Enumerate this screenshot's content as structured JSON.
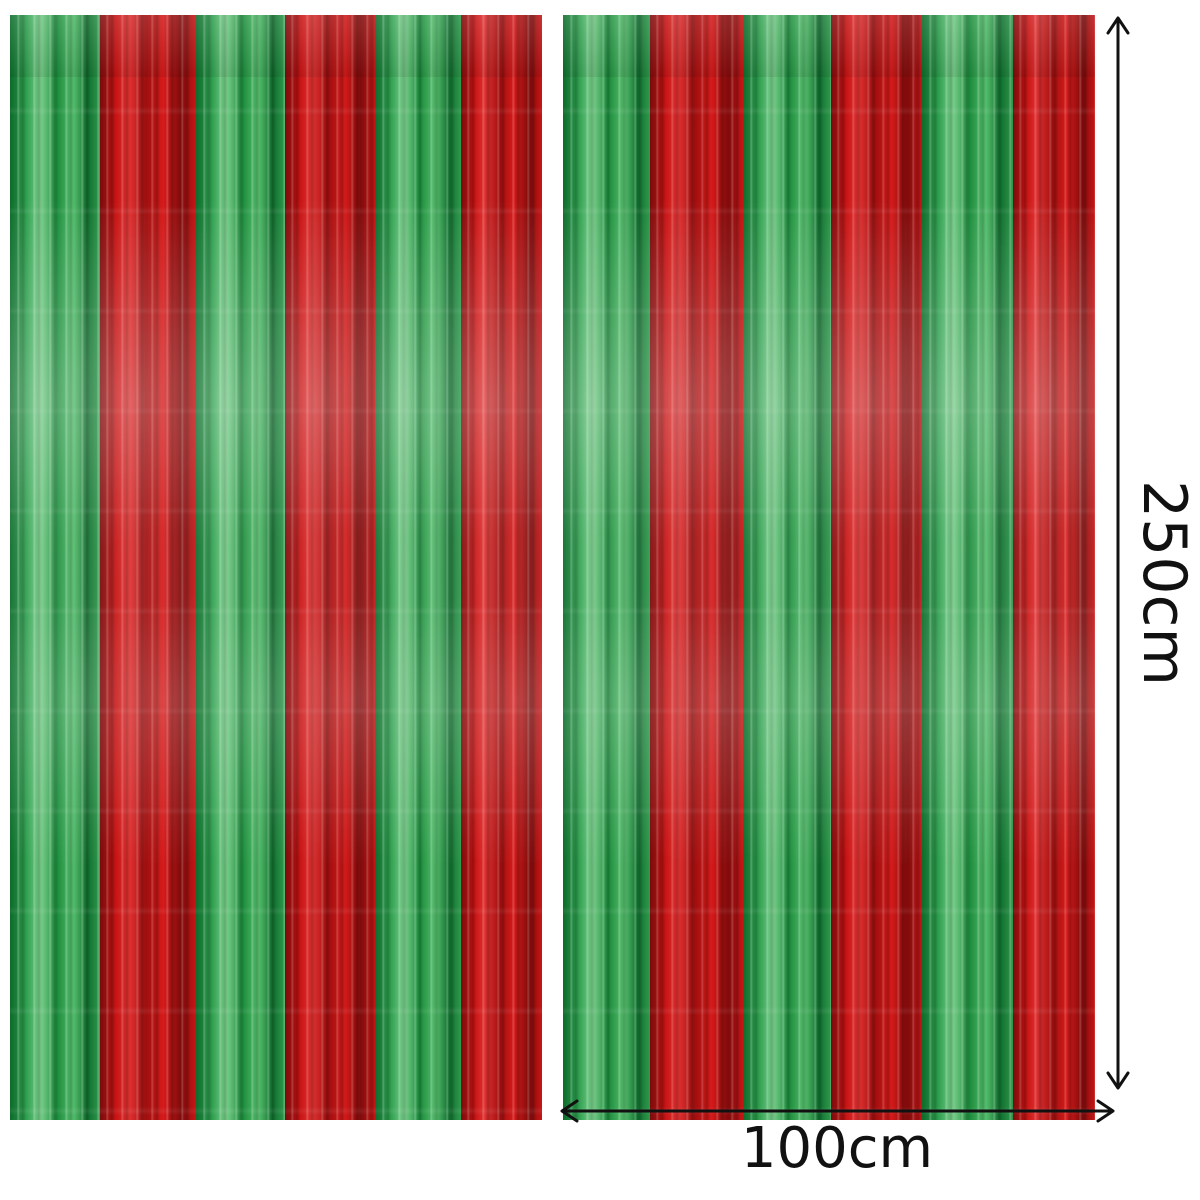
{
  "image": {
    "subject": "product-photo",
    "items": [
      {
        "name": "left-curtain",
        "stripe_colors": [
          "#1f8f3f",
          "#c21a1a",
          "#1f8f3f",
          "#c21a1a",
          "#1f8f3f",
          "#c21a1a"
        ]
      },
      {
        "name": "right-curtain",
        "stripe_colors": [
          "#1f8f3f",
          "#c21a1a",
          "#1f8f3f",
          "#c21a1a",
          "#1f8f3f",
          "#c21a1a"
        ]
      }
    ],
    "colors": {
      "background": "#ffffff",
      "green": "#1f8f3f",
      "red": "#c21a1a",
      "measure": "#111111"
    }
  },
  "dimensions": {
    "height_label": "250cm",
    "width_label": "100cm"
  }
}
